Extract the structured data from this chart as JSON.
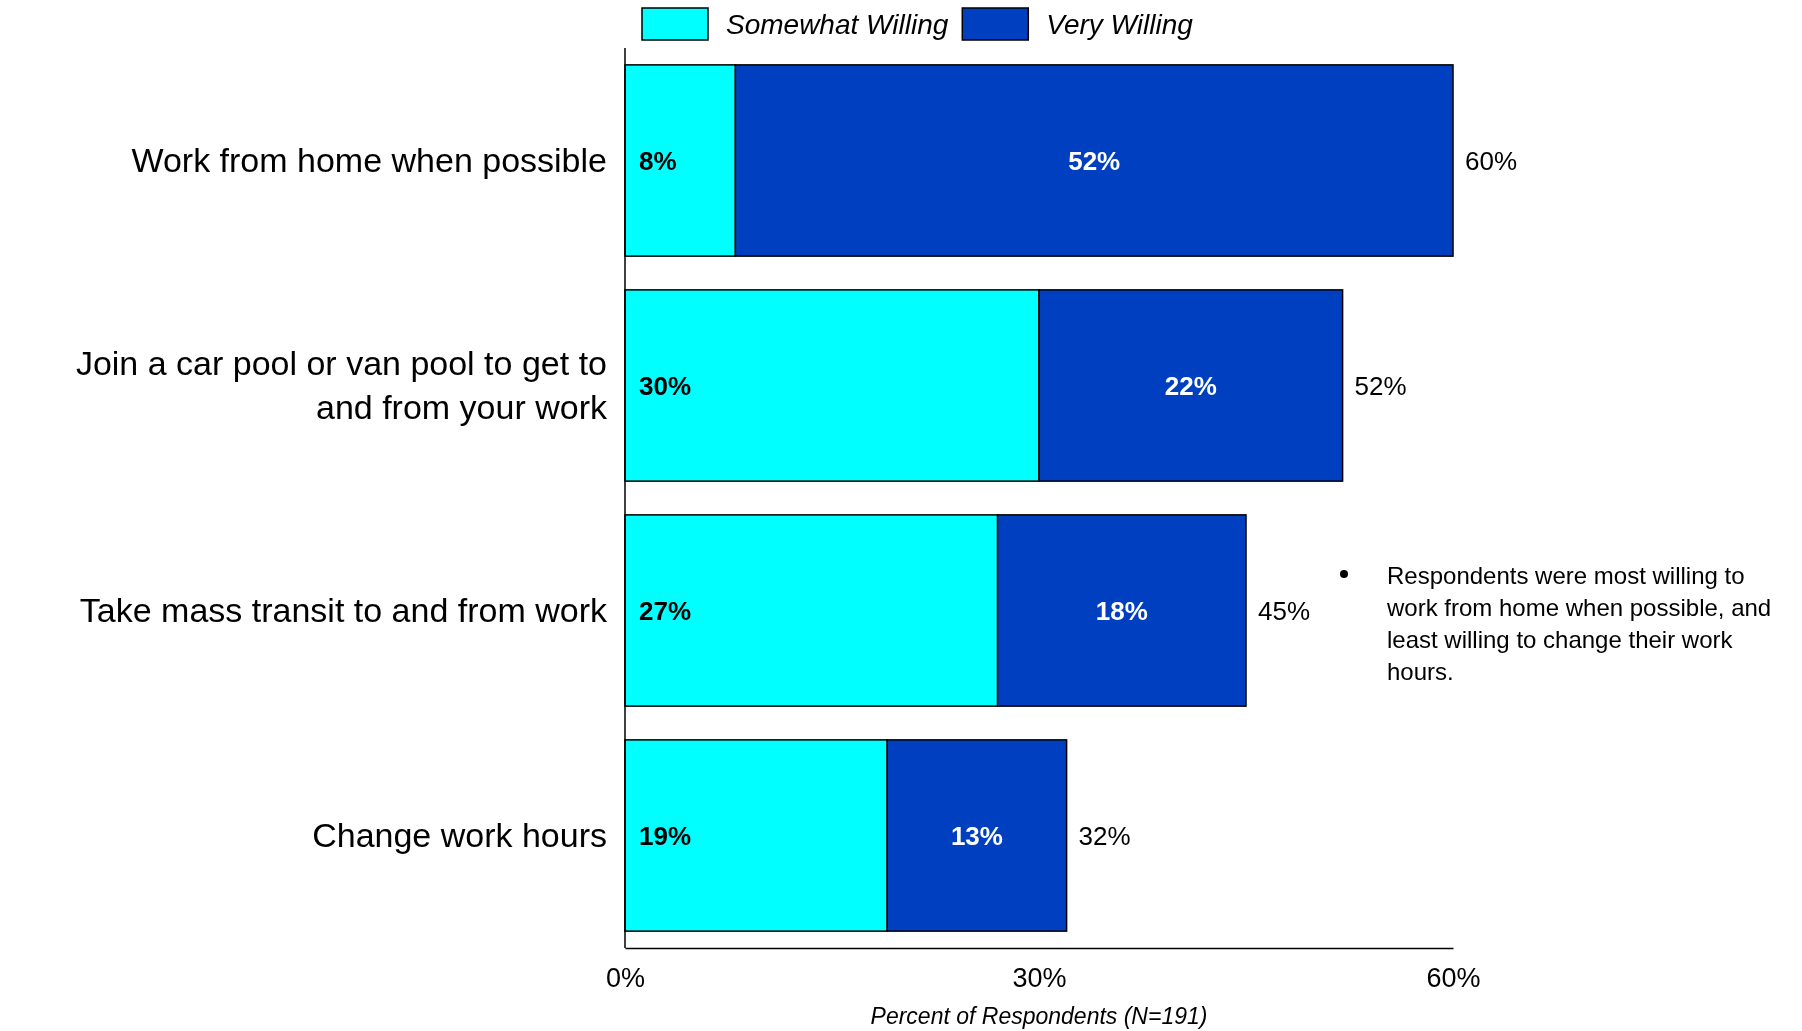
{
  "chart_data": {
    "type": "bar",
    "orientation": "horizontal",
    "stacked": true,
    "categories": [
      "Work from home when possible",
      "Join a car pool or van pool to get to and from your work",
      "Take mass transit to and from work",
      "Change work hours"
    ],
    "series": [
      {
        "name": "Somewhat Willing",
        "color": "#00ffff",
        "values": [
          8,
          30,
          27,
          19
        ],
        "value_labels": [
          "8%",
          "30%",
          "27%",
          "19%"
        ]
      },
      {
        "name": "Very Willing",
        "color": "#0040c0",
        "values": [
          52,
          22,
          18,
          13
        ],
        "value_labels": [
          "52%",
          "22%",
          "18%",
          "13%"
        ]
      }
    ],
    "totals": [
      "60%",
      "52%",
      "45%",
      "32%"
    ],
    "xlim": [
      0,
      60
    ],
    "xticks": [
      {
        "value": 0,
        "label": "0%"
      },
      {
        "value": 30,
        "label": "30%"
      },
      {
        "value": 60,
        "label": "60%"
      }
    ],
    "xlabel": "Percent of Respondents  (N=191)",
    "annotations": [
      "Respondents were most willing to work from home when possible, and least willing to change their work hours."
    ],
    "legend": "top",
    "grid": false
  }
}
